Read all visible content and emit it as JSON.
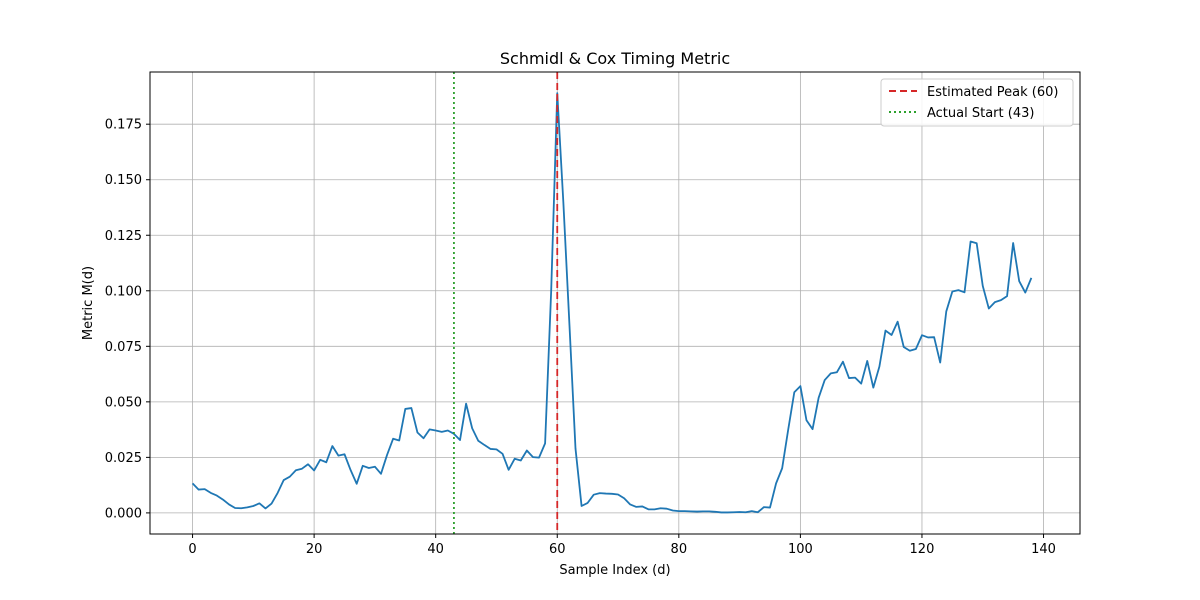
{
  "chart_data": {
    "type": "line",
    "title": "Schmidl & Cox Timing Metric",
    "xlabel": "Sample Index (d)",
    "ylabel": "Metric M(d)",
    "xlim": [
      -7,
      146
    ],
    "ylim": [
      -0.0095,
      0.1985
    ],
    "xticks": [
      0,
      20,
      40,
      60,
      80,
      100,
      120,
      140
    ],
    "yticks": [
      0.0,
      0.025,
      0.05,
      0.075,
      0.1,
      0.125,
      0.15,
      0.175
    ],
    "ytick_labels": [
      "0.000",
      "0.025",
      "0.050",
      "0.075",
      "0.100",
      "0.125",
      "0.150",
      "0.175"
    ],
    "grid": true,
    "legend_position": "top-right",
    "series": [
      {
        "color": "#1f77b4",
        "x": [
          0,
          1,
          2,
          3,
          4,
          5,
          6,
          7,
          8,
          9,
          10,
          11,
          12,
          13,
          14,
          15,
          16,
          17,
          18,
          19,
          20,
          21,
          22,
          23,
          24,
          25,
          26,
          27,
          28,
          29,
          30,
          31,
          32,
          33,
          34,
          35,
          36,
          37,
          38,
          39,
          40,
          41,
          42,
          43,
          44,
          45,
          46,
          47,
          48,
          49,
          50,
          51,
          52,
          53,
          54,
          55,
          56,
          57,
          58,
          59,
          60,
          61,
          62,
          63,
          64,
          65,
          66,
          67,
          68,
          69,
          70,
          71,
          72,
          73,
          74,
          75,
          76,
          77,
          78,
          79,
          80,
          81,
          82,
          83,
          84,
          85,
          86,
          87,
          88,
          89,
          90,
          91,
          92,
          93,
          94,
          95,
          96,
          97,
          98,
          99,
          100,
          101,
          102,
          103,
          104,
          105,
          106,
          107,
          108,
          109,
          110,
          111,
          112,
          113,
          114,
          115,
          116,
          117,
          118,
          119,
          120,
          121,
          122,
          123,
          124,
          125,
          126,
          127,
          128,
          129,
          130,
          131,
          132,
          133,
          134,
          135,
          136,
          137,
          138
        ],
        "y": [
          0.0133,
          0.0105,
          0.0107,
          0.009,
          0.0078,
          0.006,
          0.0038,
          0.0022,
          0.0021,
          0.0025,
          0.0031,
          0.0043,
          0.002,
          0.0042,
          0.009,
          0.0148,
          0.0163,
          0.0192,
          0.0199,
          0.0219,
          0.0191,
          0.0239,
          0.0228,
          0.0301,
          0.0258,
          0.0264,
          0.0193,
          0.0131,
          0.0212,
          0.0202,
          0.0208,
          0.0176,
          0.0261,
          0.0334,
          0.0326,
          0.0468,
          0.0472,
          0.0362,
          0.0336,
          0.0376,
          0.0371,
          0.0365,
          0.0371,
          0.0356,
          0.0328,
          0.0492,
          0.0381,
          0.0325,
          0.0306,
          0.0288,
          0.0286,
          0.0266,
          0.0194,
          0.0244,
          0.0236,
          0.0281,
          0.0251,
          0.0249,
          0.0313,
          0.1,
          0.189,
          0.14,
          0.085,
          0.029,
          0.0031,
          0.0045,
          0.0082,
          0.0089,
          0.0087,
          0.0086,
          0.0083,
          0.0066,
          0.0038,
          0.0027,
          0.0029,
          0.0016,
          0.0016,
          0.0021,
          0.0019,
          0.0011,
          0.0008,
          0.0008,
          0.0007,
          0.0006,
          0.0007,
          0.0007,
          0.0005,
          0.0002,
          0.0002,
          0.0003,
          0.0004,
          0.0003,
          0.0008,
          0.0003,
          0.0026,
          0.0024,
          0.0133,
          0.0201,
          0.0376,
          0.0543,
          0.0571,
          0.0417,
          0.0377,
          0.0518,
          0.0598,
          0.0628,
          0.0633,
          0.0681,
          0.0607,
          0.0609,
          0.0582,
          0.0684,
          0.0564,
          0.0659,
          0.0821,
          0.0801,
          0.0861,
          0.0747,
          0.073,
          0.0738,
          0.08,
          0.079,
          0.0791,
          0.0677,
          0.0907,
          0.0997,
          0.1003,
          0.0993,
          0.1222,
          0.1214,
          0.1022,
          0.092,
          0.0949,
          0.0958,
          0.0976,
          0.1215,
          0.1043,
          0.0992,
          0.1058
        ]
      }
    ],
    "vlines": [
      {
        "x": 60,
        "color": "#d62728",
        "style": "dashed",
        "label": "Estimated Peak (60)"
      },
      {
        "x": 43,
        "color": "#2ca02c",
        "style": "dotted",
        "label": "Actual Start (43)"
      }
    ]
  }
}
